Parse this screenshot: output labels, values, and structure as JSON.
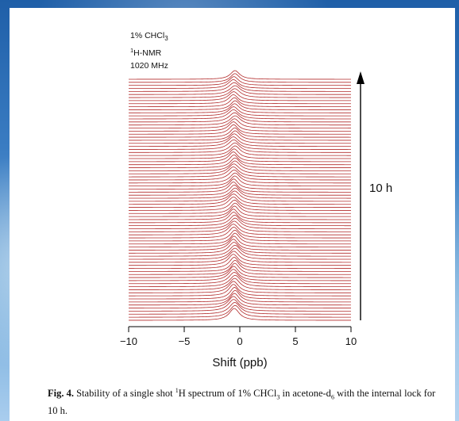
{
  "chart_data": {
    "type": "line",
    "style": "stacked spectra (waterfall)",
    "annotation_lines": [
      "1% CHCl3",
      "1H-NMR",
      "1020 MHz"
    ],
    "xlabel": "Shift (ppb)",
    "x_ticks": [
      -10,
      -5,
      0,
      5,
      10
    ],
    "xlim": [
      -10,
      10
    ],
    "time_axis_label": "10 h",
    "trace_count": 80,
    "peak_center_ppb": -0.5,
    "line_color": "#b22a2a",
    "grid": false
  },
  "caption": {
    "label": "Fig. 4.",
    "text": "Stability of a single shot 1H spectrum of 1% CHCl3 in acetone-d6 with the internal lock for 10 h."
  }
}
